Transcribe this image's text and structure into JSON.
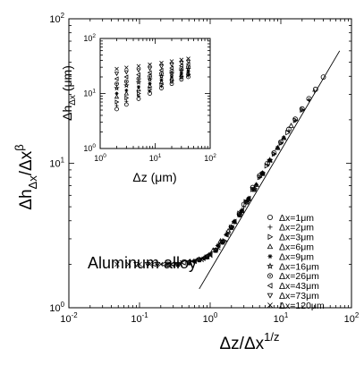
{
  "chart_data": {
    "main": {
      "type": "scatter",
      "x_scale": "log",
      "y_scale": "log",
      "xlim": [
        0.01,
        100
      ],
      "ylim": [
        1,
        100
      ],
      "xlabel": {
        "base": "Δz/Δx",
        "sup": "1/z"
      },
      "ylabel": {
        "base": "Δh",
        "sub": "Δx",
        "mid": "/Δx",
        "sup": "β"
      },
      "x_ticks": [
        {
          "value": 0.01,
          "base": "10",
          "exp": "-2"
        },
        {
          "value": 0.1,
          "base": "10",
          "exp": "-1"
        },
        {
          "value": 1,
          "base": "10",
          "exp": "0"
        },
        {
          "value": 10,
          "base": "10",
          "exp": "1"
        },
        {
          "value": 100,
          "base": "10",
          "exp": "2"
        }
      ],
      "y_ticks": [
        {
          "value": 1,
          "base": "10",
          "exp": "0"
        },
        {
          "value": 10,
          "base": "10",
          "exp": "1"
        },
        {
          "value": 100,
          "base": "10",
          "exp": "2"
        }
      ],
      "annotation": "Aluminum alloy",
      "fit_line": {
        "x": [
          0.7,
          68
        ],
        "y": [
          1.35,
          60
        ]
      },
      "legend_position": "bottom-right",
      "series": [
        {
          "name": "Δx=1μm",
          "marker": "circle",
          "x": [
            3.0,
            4.0,
            5.0,
            6.5,
            8.0,
            10,
            13,
            16,
            20,
            25,
            31,
            40
          ],
          "y": [
            5.2,
            6.8,
            8.2,
            10.0,
            11.8,
            14.0,
            17.2,
            20.2,
            23.8,
            28.0,
            32.5,
            39.5
          ]
        },
        {
          "name": "Δx=2μm",
          "marker": "plus",
          "x": [
            2.2,
            3.0,
            4.0,
            5.0,
            6.5,
            8.0,
            10,
            13,
            16,
            20,
            25,
            30
          ],
          "y": [
            3.9,
            5.0,
            6.6,
            8.0,
            9.8,
            11.6,
            13.8,
            16.8,
            19.8,
            23.4,
            27.5,
            31.5
          ]
        },
        {
          "name": "Δx=3μm",
          "marker": "triangle-right",
          "x": [
            1.6,
            2.0,
            2.6,
            3.2,
            4.0,
            5.0,
            6.3,
            8.0,
            10,
            12.5,
            16,
            20
          ],
          "y": [
            2.9,
            3.6,
            4.5,
            5.4,
            6.6,
            8.0,
            9.6,
            11.6,
            13.8,
            16.3,
            19.8,
            23.4
          ]
        },
        {
          "name": "Δx=6μm",
          "marker": "triangle-up",
          "x": [
            0.9,
            1.1,
            1.4,
            1.8,
            2.2,
            2.8,
            3.5,
            4.5,
            5.5,
            7.0,
            9.0,
            11,
            14
          ],
          "y": [
            2.25,
            2.5,
            2.9,
            3.4,
            3.95,
            4.7,
            5.7,
            7.1,
            8.5,
            10.5,
            12.8,
            15.0,
            18.2
          ]
        },
        {
          "name": "Δx=9μm",
          "marker": "asterisk",
          "x": [
            0.6,
            0.8,
            1.0,
            1.3,
            1.7,
            2.2,
            2.8,
            3.5,
            4.5,
            5.5,
            7.0,
            9.0,
            11
          ],
          "y": [
            2.1,
            2.2,
            2.35,
            2.7,
            3.2,
            3.95,
            4.7,
            5.7,
            7.1,
            8.5,
            10.5,
            12.8,
            15.0
          ]
        },
        {
          "name": "Δx=16μm",
          "marker": "star",
          "x": [
            0.35,
            0.5,
            0.7,
            0.9,
            1.2,
            1.5,
            2.0,
            2.6,
            3.3,
            4.2,
            5.5,
            7.0
          ],
          "y": [
            2.0,
            2.05,
            2.15,
            2.25,
            2.5,
            2.85,
            3.6,
            4.4,
            5.4,
            6.6,
            8.5,
            10.5
          ]
        },
        {
          "name": "Δx=26μm",
          "marker": "circle-dot",
          "x": [
            0.25,
            0.35,
            0.5,
            0.7,
            0.9,
            1.2,
            1.5,
            2.0,
            2.6,
            3.3,
            4.2,
            5.5
          ],
          "y": [
            2.0,
            2.0,
            2.05,
            2.15,
            2.25,
            2.5,
            2.85,
            3.6,
            4.4,
            5.4,
            6.6,
            8.5
          ]
        },
        {
          "name": "Δx=43μm",
          "marker": "triangle-left",
          "x": [
            0.16,
            0.22,
            0.3,
            0.42,
            0.6,
            0.8,
            1.0,
            1.3,
            1.7,
            2.2,
            2.8,
            3.5
          ],
          "y": [
            2.0,
            2.0,
            2.0,
            2.05,
            2.1,
            2.2,
            2.35,
            2.7,
            3.2,
            3.95,
            4.7,
            5.7
          ]
        },
        {
          "name": "Δx=73μm",
          "marker": "triangle-down",
          "x": [
            0.09,
            0.13,
            0.18,
            0.25,
            0.35,
            0.5,
            0.7,
            0.9,
            1.2,
            1.5,
            2.0,
            2.6
          ],
          "y": [
            2.0,
            2.0,
            2.0,
            2.0,
            2.0,
            2.05,
            2.15,
            2.25,
            2.5,
            2.85,
            3.6,
            4.4
          ]
        },
        {
          "name": "Δx=120μm",
          "marker": "cross",
          "x": [
            0.048,
            0.07,
            0.1,
            0.14,
            0.2,
            0.28,
            0.4,
            0.55,
            0.75,
            1.0,
            1.3,
            1.8
          ],
          "y": [
            2.0,
            2.0,
            2.0,
            2.0,
            2.0,
            2.0,
            2.05,
            2.1,
            2.15,
            2.3,
            2.6,
            3.3
          ]
        }
      ]
    },
    "inset": {
      "type": "scatter",
      "x_scale": "log",
      "y_scale": "log",
      "xlim": [
        1,
        100
      ],
      "ylim": [
        1,
        100
      ],
      "xlabel": "Δz (μm)",
      "ylabel": {
        "base": "Δh",
        "sub": "Δx",
        "unit": " (μm)"
      },
      "x_ticks": [
        {
          "value": 1,
          "base": "10",
          "exp": "0"
        },
        {
          "value": 10,
          "base": "10",
          "exp": "1"
        },
        {
          "value": 100,
          "base": "10",
          "exp": "2"
        }
      ],
      "y_ticks": [
        {
          "value": 1,
          "base": "10",
          "exp": "0"
        },
        {
          "value": 10,
          "base": "10",
          "exp": "1"
        },
        {
          "value": 100,
          "base": "10",
          "exp": "2"
        }
      ],
      "series": [
        {
          "name": "Δx=1μm",
          "marker": "circle",
          "x": [
            2.0,
            3.0,
            5.0,
            8.0,
            13,
            20,
            30,
            40
          ],
          "y": [
            5.2,
            6.3,
            8.0,
            10.0,
            12.5,
            15.0,
            18.0,
            20.0
          ]
        },
        {
          "name": "Δx=2μm",
          "marker": "plus",
          "x": [
            2.0,
            3.0,
            5.0,
            8.0,
            13,
            20,
            30,
            40
          ],
          "y": [
            6.0,
            7.2,
            9.0,
            11.0,
            13.5,
            16.0,
            19.0,
            21.0
          ]
        },
        {
          "name": "Δx=3μm",
          "marker": "triangle-right",
          "x": [
            2.0,
            3.0,
            5.0,
            8.0,
            13,
            20,
            30,
            40
          ],
          "y": [
            7.0,
            8.3,
            10.0,
            12.0,
            14.5,
            17.0,
            20.0,
            22.0
          ]
        },
        {
          "name": "Δx=6μm",
          "marker": "triangle-up",
          "x": [
            2.0,
            3.0,
            5.0,
            8.0,
            13,
            20,
            30,
            40
          ],
          "y": [
            8.7,
            10.0,
            11.8,
            13.8,
            16.2,
            18.8,
            21.5,
            23.5
          ]
        },
        {
          "name": "Δx=9μm",
          "marker": "asterisk",
          "x": [
            2.0,
            3.0,
            5.0,
            8.0,
            13,
            20,
            30,
            40
          ],
          "y": [
            10.0,
            11.4,
            13.2,
            15.2,
            17.6,
            20.0,
            23.0,
            25.0
          ]
        },
        {
          "name": "Δx=16μm",
          "marker": "star",
          "x": [
            2.0,
            3.0,
            5.0,
            8.0,
            13,
            20,
            30,
            40
          ],
          "y": [
            12.5,
            14.0,
            16.0,
            18.0,
            20.5,
            23.0,
            26.0,
            28.0
          ]
        },
        {
          "name": "Δx=26μm",
          "marker": "circle-dot",
          "x": [
            2.0,
            3.0,
            5.0,
            8.0,
            13,
            20,
            30,
            40
          ],
          "y": [
            15.0,
            16.5,
            18.5,
            20.5,
            23.0,
            25.5,
            28.5,
            30.5
          ]
        },
        {
          "name": "Δx=43μm",
          "marker": "triangle-left",
          "x": [
            2.0,
            3.0,
            5.0,
            8.0,
            13,
            20,
            30,
            40
          ],
          "y": [
            18.5,
            20.0,
            22.0,
            24.0,
            26.5,
            29.0,
            32.0,
            34.0
          ]
        },
        {
          "name": "Δx=73μm",
          "marker": "triangle-down",
          "x": [
            2.0,
            3.0,
            5.0,
            8.0,
            13,
            20,
            30,
            40
          ],
          "y": [
            23.0,
            24.5,
            26.5,
            28.5,
            31.0,
            33.5,
            36.0,
            38.0
          ]
        },
        {
          "name": "Δx=120μm",
          "marker": "cross",
          "x": [
            2.0,
            3.0,
            5.0,
            8.0,
            13,
            20,
            30,
            40
          ],
          "y": [
            28.0,
            29.5,
            31.5,
            33.5,
            36.0,
            38.5,
            41.0,
            43.0
          ]
        }
      ]
    }
  }
}
